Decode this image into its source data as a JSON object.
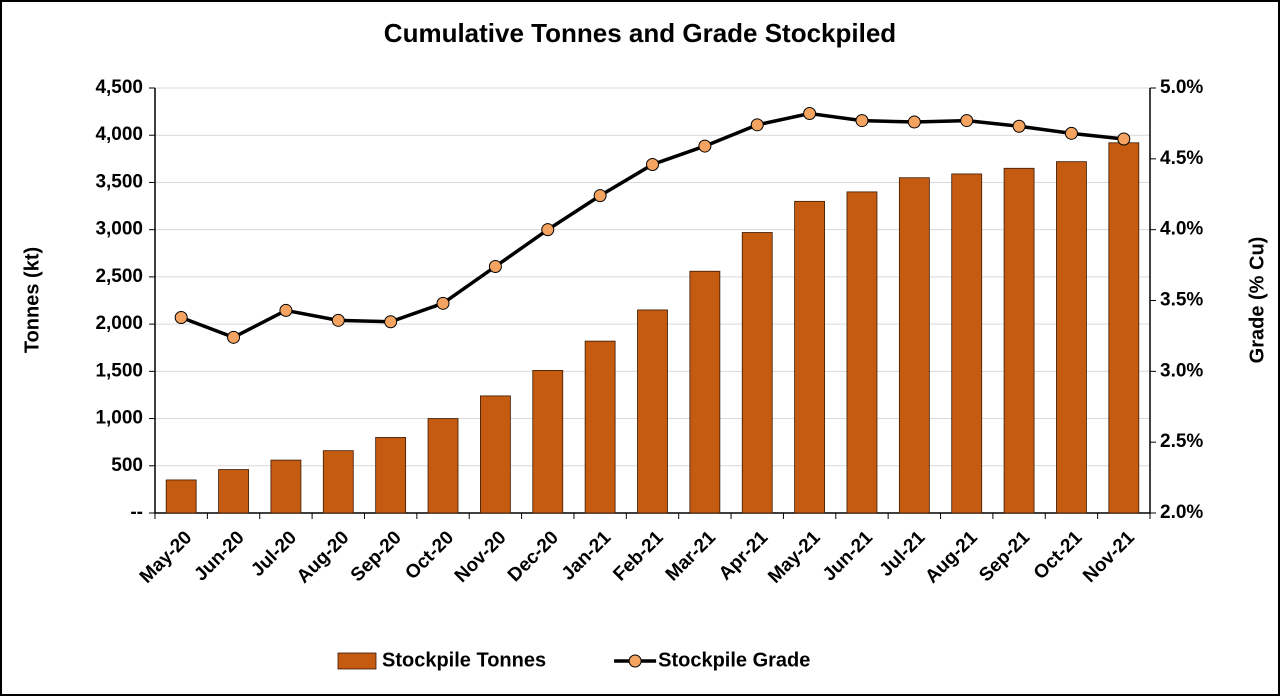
{
  "chart_data": {
    "type": "combo",
    "title": "Cumulative Tonnes and Grade Stockpiled",
    "y_label": "Tonnes (kt)",
    "y2_label": "Grade (% Cu)",
    "categories": [
      "May-20",
      "Jun-20",
      "Jul-20",
      "Aug-20",
      "Sep-20",
      "Oct-20",
      "Nov-20",
      "Dec-20",
      "Jan-21",
      "Feb-21",
      "Mar-21",
      "Apr-21",
      "May-21",
      "Jun-21",
      "Jul-21",
      "Aug-21",
      "Sep-21",
      "Oct-21",
      "Nov-21"
    ],
    "series": [
      {
        "name": "Stockpile Tonnes",
        "type": "bar",
        "color": "#c55a11",
        "values": [
          350,
          460,
          560,
          660,
          800,
          1000,
          1240,
          1510,
          1820,
          2150,
          2560,
          2970,
          3300,
          3400,
          3550,
          3590,
          3650,
          3720,
          3920
        ]
      },
      {
        "name": "Stockpile Grade",
        "type": "line",
        "axis": "y2",
        "color": "#000000",
        "marker_color": "#f4a460",
        "values": [
          3.38,
          3.24,
          3.43,
          3.36,
          3.35,
          3.48,
          3.74,
          4.0,
          4.24,
          4.46,
          4.59,
          4.74,
          4.82,
          4.77,
          4.76,
          4.77,
          4.73,
          4.68,
          4.64
        ]
      }
    ],
    "ylim": [
      0,
      4500
    ],
    "yticks": [
      {
        "value": 0,
        "label": "--"
      },
      500,
      {
        "value": 1000,
        "label": "1,000"
      },
      {
        "value": 1500,
        "label": "1,500"
      },
      {
        "value": 2000,
        "label": "2,000"
      },
      {
        "value": 2500,
        "label": "2,500"
      },
      {
        "value": 3000,
        "label": "3,000"
      },
      {
        "value": 3500,
        "label": "3,500"
      },
      {
        "value": 4000,
        "label": "4,000"
      },
      {
        "value": 4500,
        "label": "4,500"
      }
    ],
    "y2lim": [
      2,
      5
    ],
    "y2ticks": [
      {
        "value": 2,
        "label": "2.0%"
      },
      {
        "value": 2.5,
        "label": "2.5%"
      },
      {
        "value": 3,
        "label": "3.0%"
      },
      {
        "value": 3.5,
        "label": "3.5%"
      },
      {
        "value": 4,
        "label": "4.0%"
      },
      {
        "value": 4.5,
        "label": "4.5%"
      },
      {
        "value": 5,
        "label": "5.0%"
      }
    ],
    "grid": true,
    "legend": "bottom"
  }
}
